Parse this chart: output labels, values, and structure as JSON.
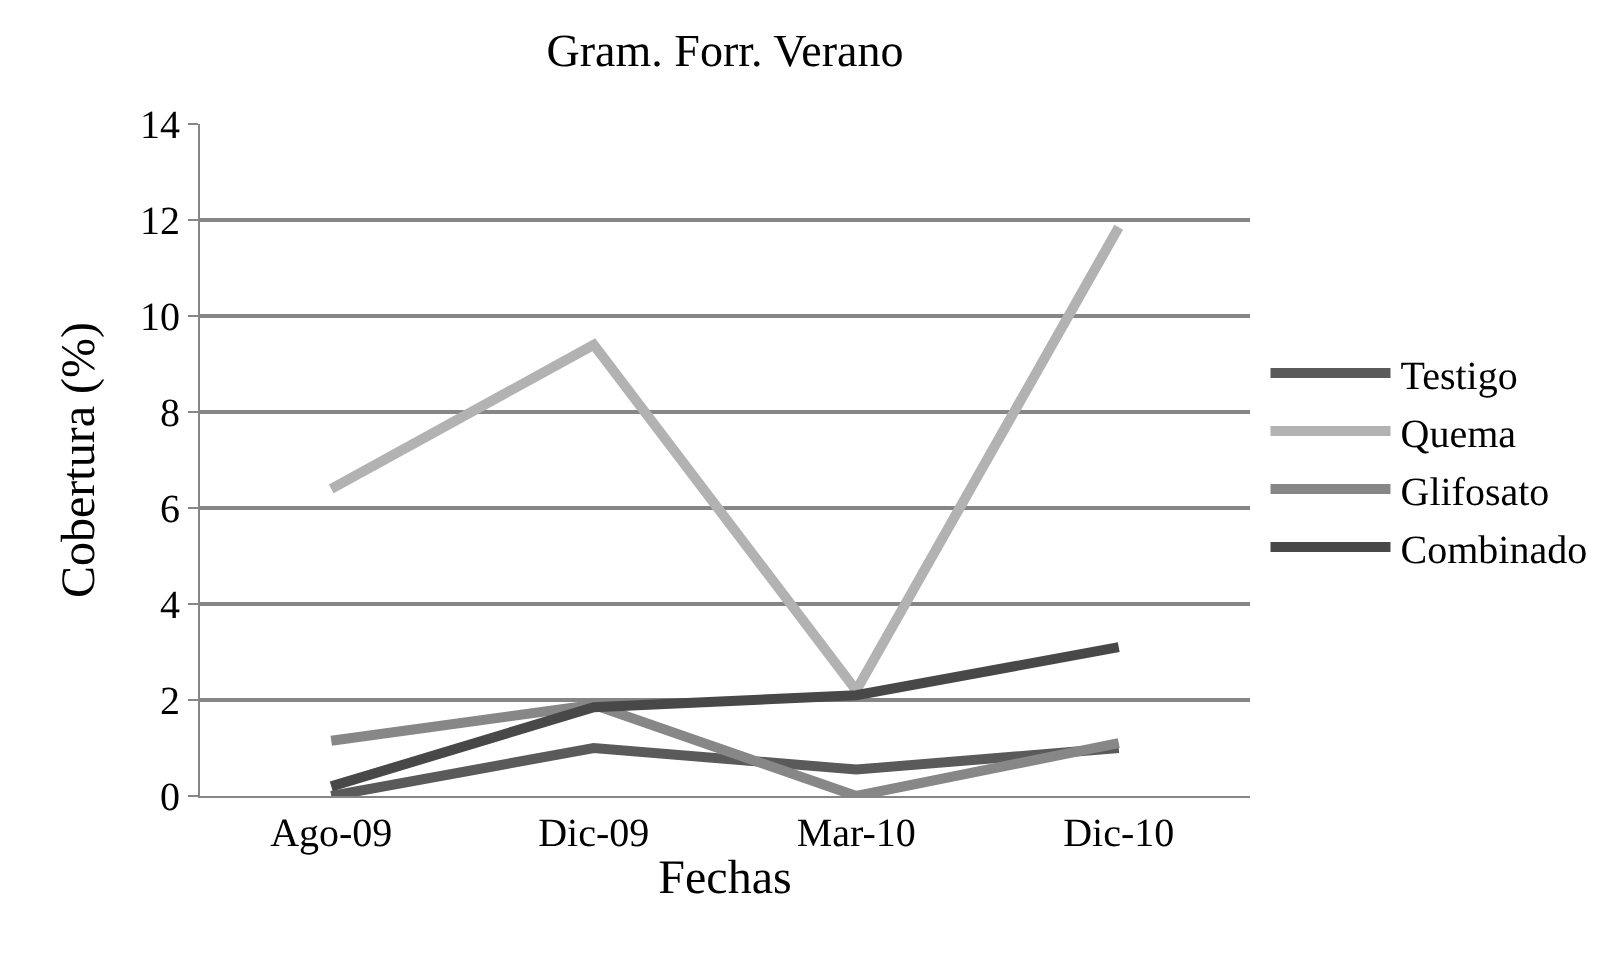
{
  "chart_data": {
    "type": "line",
    "title": "Gram. Forr. Verano",
    "xlabel": "Fechas",
    "ylabel": "Cobertura (%)",
    "categories": [
      "Ago-09",
      "Dic-09",
      "Mar-10",
      "Dic-10"
    ],
    "series": [
      {
        "name": "Testigo",
        "color": "#5a5a5a",
        "values": [
          0.0,
          1.0,
          0.55,
          1.0
        ]
      },
      {
        "name": "Quema",
        "color": "#b2b2b2",
        "values": [
          6.4,
          9.4,
          2.2,
          11.85
        ]
      },
      {
        "name": "Glifosato",
        "color": "#878787",
        "values": [
          1.15,
          1.9,
          0.0,
          1.1
        ]
      },
      {
        "name": "Combinado",
        "color": "#484848",
        "values": [
          0.2,
          1.85,
          2.1,
          3.1
        ]
      }
    ],
    "ylim": [
      0,
      14
    ],
    "yticks": [
      0,
      2,
      4,
      6,
      8,
      10,
      12,
      14
    ],
    "grid": "y",
    "legend": "right",
    "marker": "none",
    "line_style": "solid"
  }
}
